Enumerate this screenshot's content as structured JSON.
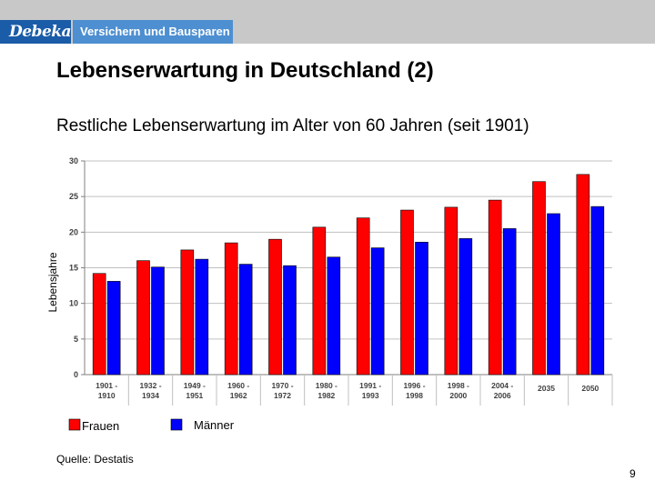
{
  "header": {
    "logo_text": "Debeka",
    "tagline": "Versichern und Bausparen"
  },
  "title": "Lebenserwartung in Deutschland (2)",
  "subtitle": "Restliche Lebenserwartung im Alter von 60 Jahren (seit 1901)",
  "colors": {
    "header_bar": "#c8c8c8",
    "logo_bg": "#1a5ca8",
    "tagline_bg": "#4d8fd1",
    "frauen": "#ff0000",
    "maenner": "#0000ff",
    "grid": "#c0c0c0"
  },
  "chart_data": {
    "type": "bar",
    "ylabel": "Lebensjahre",
    "xlabel": "",
    "ylim": [
      0,
      30
    ],
    "yticks": [
      0,
      5,
      10,
      15,
      20,
      25,
      30
    ],
    "categories": [
      [
        "1901 -",
        "1910"
      ],
      [
        "1932 -",
        "1934"
      ],
      [
        "1949 -",
        "1951"
      ],
      [
        "1960 -",
        "1962"
      ],
      [
        "1970 -",
        "1972"
      ],
      [
        "1980 -",
        "1982"
      ],
      [
        "1991 -",
        "1993"
      ],
      [
        "1996 -",
        "1998"
      ],
      [
        "1998 -",
        "2000"
      ],
      [
        "2004 -",
        "2006"
      ],
      [
        "2035"
      ],
      [
        "2050"
      ]
    ],
    "series": [
      {
        "name": "Frauen",
        "values": [
          14.2,
          16.0,
          17.5,
          18.5,
          19.0,
          20.7,
          22.0,
          23.1,
          23.5,
          24.5,
          27.1,
          28.1
        ]
      },
      {
        "name": "Männer",
        "values": [
          13.1,
          15.1,
          16.2,
          15.5,
          15.3,
          16.5,
          17.8,
          18.6,
          19.1,
          20.5,
          22.6,
          23.6
        ]
      }
    ],
    "grid": true,
    "legend": "bottom-left"
  },
  "source": "Quelle: Destatis",
  "page_number": "9"
}
